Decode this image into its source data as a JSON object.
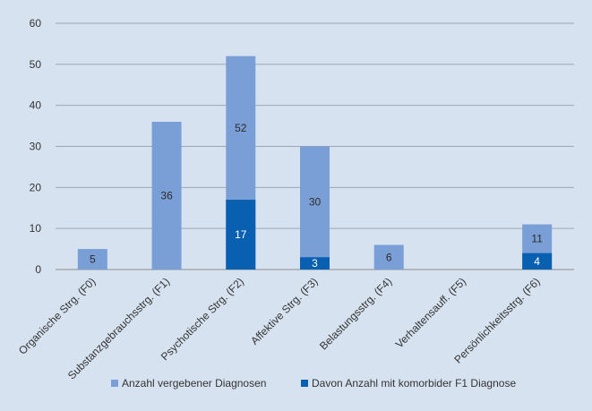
{
  "chart_data": {
    "type": "bar",
    "stacking": "overlay",
    "categories": [
      "Organische Strg. (F0)",
      "Substanzgebrauchsstrg. (F1)",
      "Psychotische Strg. (F2)",
      "Affektive Strg. (F3)",
      "Belastungsstrg. (F4)",
      "Verhaltensauff. (F5)",
      "Persönlichkeitsstrg. (F6)"
    ],
    "series": [
      {
        "name": "Anzahl vergebener Diagnosen",
        "values": [
          5,
          36,
          52,
          30,
          6,
          0,
          11
        ],
        "labels": [
          "5",
          "36",
          "52",
          "30",
          "6",
          "",
          "11"
        ],
        "color": "#7a9fd6"
      },
      {
        "name": "Davon Anzahl mit komorbider F1 Diagnose",
        "values": [
          0,
          0,
          17,
          3,
          0,
          0,
          4
        ],
        "labels": [
          "",
          "",
          "17",
          "3",
          "",
          "",
          "4"
        ],
        "color": "#0a60b0"
      }
    ],
    "ylim": [
      0,
      60
    ],
    "yticks": [
      "0",
      "10",
      "20",
      "30",
      "40",
      "50",
      "60"
    ],
    "grid": true,
    "legend": "bottom",
    "title": "",
    "xlabel": "",
    "ylabel": ""
  }
}
